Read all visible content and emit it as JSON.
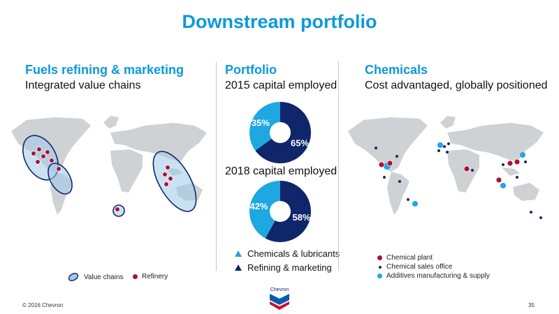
{
  "page": {
    "title": "Downstream portfolio",
    "footer_left": "© 2016 Chevron",
    "page_number": "35",
    "logo_text": "Chevron"
  },
  "colors": {
    "accent": "#0a9ad9",
    "navy": "#10266b",
    "light_blue": "#1ea7e1",
    "refinery_red": "#a8133a",
    "land": "#cfd2d4"
  },
  "left": {
    "heading": "Fuels refining & marketing",
    "subheading": "Integrated value chains",
    "legend": [
      {
        "icon": "value-chain-ellipse",
        "label": "Value chains"
      },
      {
        "icon": "red-dot",
        "label": "Refinery"
      }
    ]
  },
  "middle": {
    "heading": "Portfolio",
    "legend": [
      {
        "label": "Chemicals & lubricants",
        "color": "#1ea7e1"
      },
      {
        "label": "Refining & marketing",
        "color": "#10266b"
      }
    ]
  },
  "right": {
    "heading": "Chemicals",
    "subheading": "Cost advantaged, globally positioned",
    "legend": [
      {
        "label": "Chemical plant",
        "color": "#a8133a"
      },
      {
        "label": "Chemical sales office",
        "color": "#10266b"
      },
      {
        "label": "Additives manufacturing & supply",
        "color": "#1ea7e1"
      }
    ]
  },
  "chart_data": [
    {
      "type": "pie",
      "title": "2015 capital employed",
      "slices": [
        {
          "label": "Chemicals & lubricants",
          "value": 35,
          "display": "35%",
          "color": "#1ea7e1"
        },
        {
          "label": "Refining & marketing",
          "value": 65,
          "display": "65%",
          "color": "#10266b"
        }
      ]
    },
    {
      "type": "pie",
      "title": "2018 capital employed",
      "slices": [
        {
          "label": "Chemicals & lubricants",
          "value": 42,
          "display": "42%",
          "color": "#1ea7e1"
        },
        {
          "label": "Refining & marketing",
          "value": 58,
          "display": "58%",
          "color": "#10266b"
        }
      ]
    }
  ]
}
